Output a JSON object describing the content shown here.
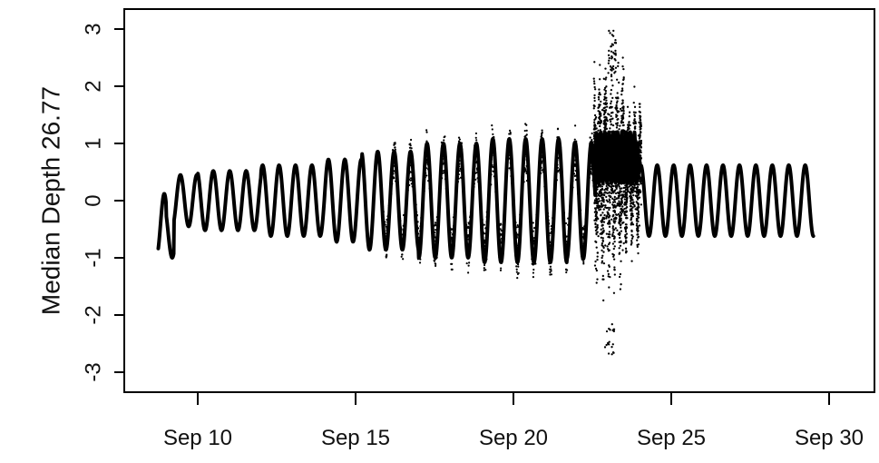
{
  "chart_data": {
    "type": "line",
    "title": "",
    "ylabel": "Median Depth 26.77",
    "xlabel": "",
    "x_axis": {
      "ticks": [
        {
          "label": "Sep 10",
          "day": 10
        },
        {
          "label": "Sep 15",
          "day": 15
        },
        {
          "label": "Sep 20",
          "day": 20
        },
        {
          "label": "Sep 25",
          "day": 25
        },
        {
          "label": "Sep 30",
          "day": 30
        }
      ],
      "range": [
        "Sep 8",
        "Sep 31"
      ]
    },
    "y_axis": {
      "ticks": [
        -3,
        -2,
        -1,
        0,
        1,
        2,
        3
      ],
      "range": [
        -3.2,
        3.2
      ]
    },
    "grid": false,
    "legend": "none",
    "colors": {
      "series": "#000000",
      "frame": "#000000",
      "background": "#ffffff"
    },
    "series": [
      {
        "values_note": "",
        "points": [
          {
            "x": "Sep 8",
            "y": -0.1
          },
          {
            "x": "Sep 9",
            "y": -1.3
          },
          {
            "x": "Sep 10",
            "y": 0.5
          },
          {
            "x": "Sep 11",
            "y": 0.4
          },
          {
            "x": "Sep 12",
            "y": 0.6
          },
          {
            "x": "Sep 13",
            "y": 0.6
          },
          {
            "x": "Sep 14",
            "y": 0.8
          },
          {
            "x": "Sep 15",
            "y": 0.8
          },
          {
            "x": "Sep 16",
            "y": 1.3
          },
          {
            "x": "Sep 17",
            "y": -1.2
          },
          {
            "x": "Sep 18",
            "y": 1.3
          },
          {
            "x": "Sep 19",
            "y": 1.5
          },
          {
            "x": "Sep 20",
            "y": 1.5
          },
          {
            "x": "Sep 21",
            "y": 1.6
          },
          {
            "x": "Sep 22",
            "y": 1.6
          },
          {
            "x": "Sep 23",
            "y": 3.0
          },
          {
            "x": "Sep 23",
            "y": -2.7
          },
          {
            "x": "Sep 24",
            "y": 0.8
          },
          {
            "x": "Sep 25",
            "y": 0.6
          },
          {
            "x": "Sep 26",
            "y": 0.6
          },
          {
            "x": "Sep 27",
            "y": 0.6
          },
          {
            "x": "Sep 28",
            "y": 0.6
          },
          {
            "x": "Sep 29",
            "y": 0.7
          },
          {
            "x": "Sep 29",
            "y": 0.2
          }
        ]
      }
    ]
  }
}
